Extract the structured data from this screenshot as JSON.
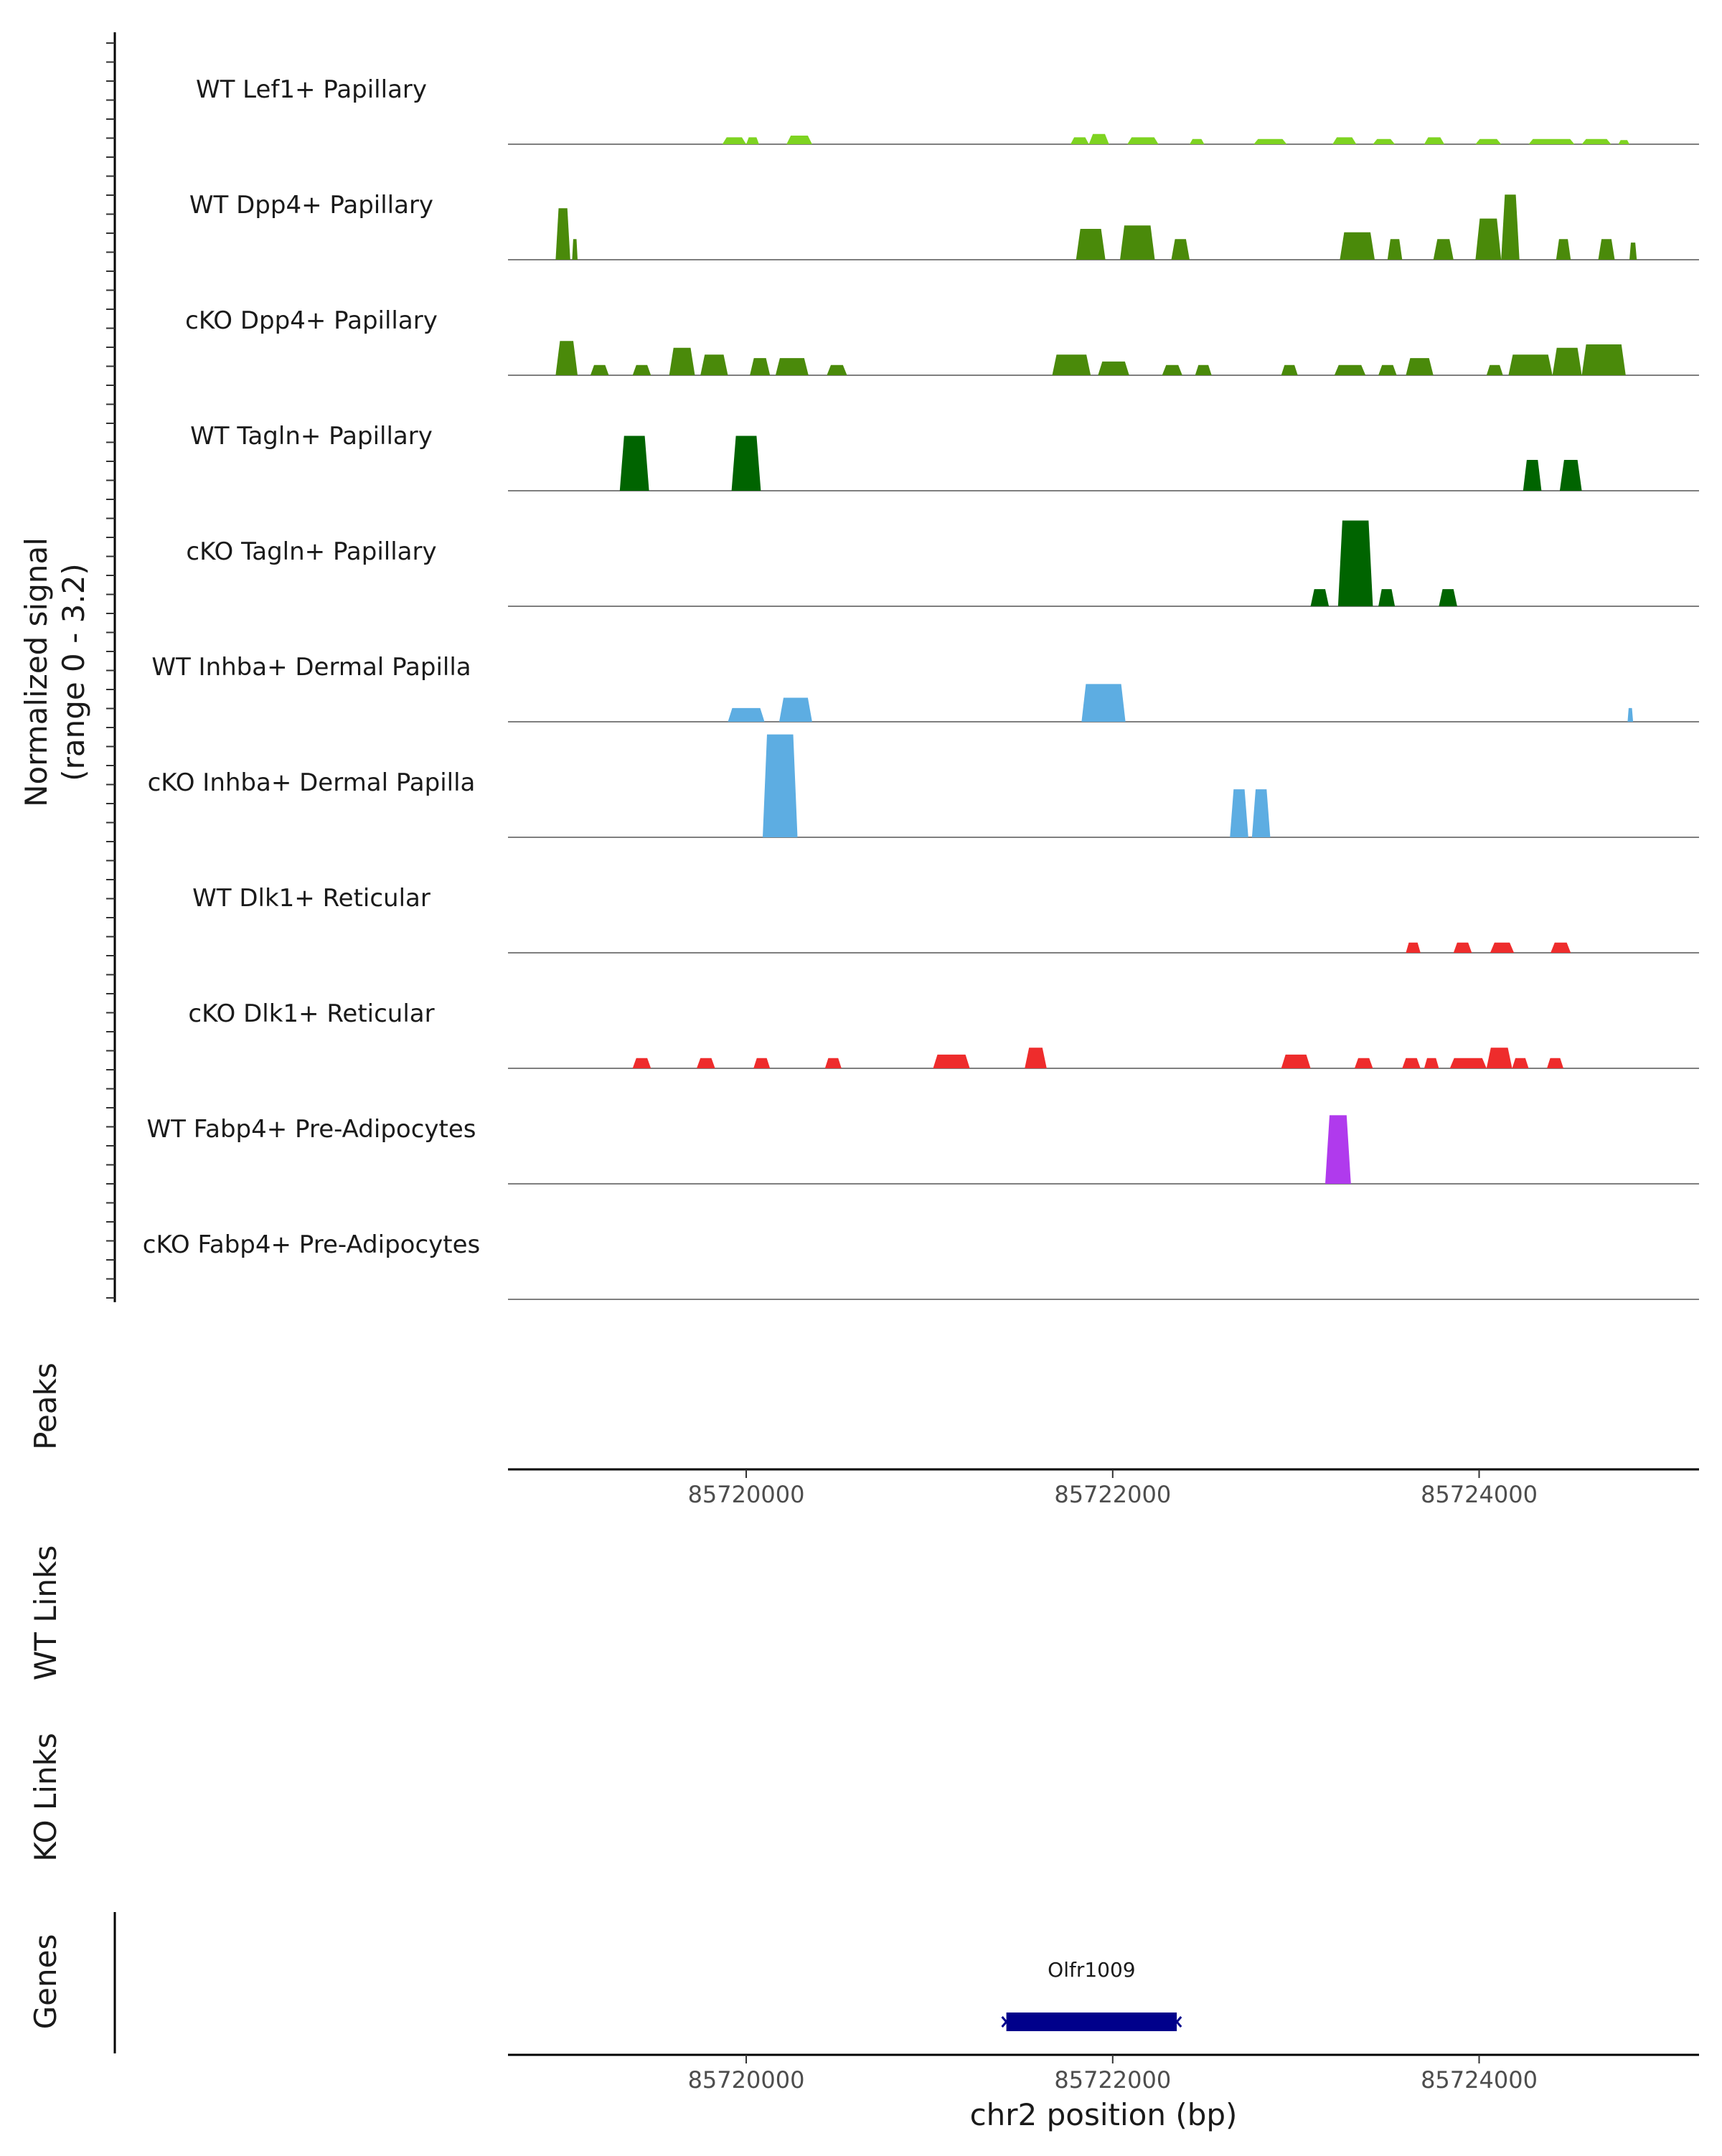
{
  "chart_data": {
    "type": "area",
    "title": "",
    "region": {
      "chromosome": "chr2",
      "start": 85718700,
      "end": 85725200
    },
    "ylabel": [
      "Normalized signal",
      "(range 0 - 3.2)"
    ],
    "ylim": [
      0,
      3.2
    ],
    "xlabel": "chr2 position (bp)",
    "xticks": [
      85720000,
      85722000,
      85724000
    ],
    "xtick_labels": [
      "85720000",
      "85722000",
      "85724000"
    ],
    "tracks": [
      {
        "label": "WT Lef1+ Papillary",
        "color": "#7ed321",
        "peaks": [
          [
            85719870,
            85720000,
            0.2
          ],
          [
            85720000,
            85720070,
            0.2
          ],
          [
            85720220,
            85720360,
            0.25
          ],
          [
            85721770,
            85721870,
            0.2
          ],
          [
            85721870,
            85721980,
            0.3
          ],
          [
            85722080,
            85722250,
            0.2
          ],
          [
            85722420,
            85722500,
            0.15
          ],
          [
            85722770,
            85722950,
            0.15
          ],
          [
            85723200,
            85723330,
            0.2
          ],
          [
            85723420,
            85723540,
            0.15
          ],
          [
            85723700,
            85723810,
            0.2
          ],
          [
            85723980,
            85724120,
            0.15
          ],
          [
            85724270,
            85724520,
            0.15
          ],
          [
            85724560,
            85724720,
            0.15
          ],
          [
            85724760,
            85724820,
            0.12
          ]
        ]
      },
      {
        "label": "WT Dpp4+ Papillary",
        "color": "#4a8a0a",
        "peaks": [
          [
            85718960,
            85719040,
            1.5
          ],
          [
            85719050,
            85719080,
            0.6
          ],
          [
            85721800,
            85721960,
            0.9
          ],
          [
            85722040,
            85722230,
            1.0
          ],
          [
            85722320,
            85722420,
            0.6
          ],
          [
            85723240,
            85723430,
            0.8
          ],
          [
            85723500,
            85723580,
            0.6
          ],
          [
            85723750,
            85723860,
            0.6
          ],
          [
            85723980,
            85724120,
            1.2
          ],
          [
            85724120,
            85724220,
            1.9
          ],
          [
            85724420,
            85724500,
            0.6
          ],
          [
            85724650,
            85724740,
            0.6
          ],
          [
            85724820,
            85724860,
            0.5
          ]
        ]
      },
      {
        "label": "cKO Dpp4+ Papillary",
        "color": "#4a8a0a",
        "peaks": [
          [
            85718960,
            85719080,
            1.0
          ],
          [
            85719150,
            85719250,
            0.3
          ],
          [
            85719380,
            85719480,
            0.3
          ],
          [
            85719580,
            85719720,
            0.8
          ],
          [
            85719750,
            85719900,
            0.6
          ],
          [
            85720020,
            85720130,
            0.5
          ],
          [
            85720160,
            85720340,
            0.5
          ],
          [
            85720440,
            85720550,
            0.3
          ],
          [
            85721670,
            85721880,
            0.6
          ],
          [
            85721920,
            85722090,
            0.4
          ],
          [
            85722270,
            85722380,
            0.3
          ],
          [
            85722450,
            85722540,
            0.3
          ],
          [
            85722920,
            85723010,
            0.3
          ],
          [
            85723210,
            85723380,
            0.3
          ],
          [
            85723450,
            85723550,
            0.3
          ],
          [
            85723600,
            85723750,
            0.5
          ],
          [
            85724040,
            85724130,
            0.3
          ],
          [
            85724160,
            85724400,
            0.6
          ],
          [
            85724400,
            85724560,
            0.8
          ],
          [
            85724560,
            85724800,
            0.9
          ]
        ]
      },
      {
        "label": "WT Tagln+ Papillary",
        "color": "#006400",
        "peaks": [
          [
            85719310,
            85719470,
            1.6
          ],
          [
            85719920,
            85720080,
            1.6
          ],
          [
            85724240,
            85724340,
            0.9
          ],
          [
            85724440,
            85724560,
            0.9
          ]
        ]
      },
      {
        "label": "cKO Tagln+ Papillary",
        "color": "#006400",
        "peaks": [
          [
            85723080,
            85723180,
            0.5
          ],
          [
            85723230,
            85723420,
            2.5
          ],
          [
            85723450,
            85723540,
            0.5
          ],
          [
            85723780,
            85723880,
            0.5
          ]
        ]
      },
      {
        "label": "WT Inhba+ Dermal Papilla",
        "color": "#5dade2",
        "peaks": [
          [
            85719900,
            85720100,
            0.4
          ],
          [
            85720180,
            85720360,
            0.7
          ],
          [
            85721830,
            85722070,
            1.1
          ],
          [
            85724810,
            85724840,
            0.4
          ]
        ]
      },
      {
        "label": "cKO Inhba+ Dermal Papilla",
        "color": "#5dade2",
        "peaks": [
          [
            85720090,
            85720280,
            3.0
          ],
          [
            85722640,
            85722740,
            1.4
          ],
          [
            85722760,
            85722860,
            1.4
          ]
        ]
      },
      {
        "label": "WT Dlk1+ Reticular",
        "color": "#ee2c2c",
        "peaks": [
          [
            85723600,
            85723680,
            0.3
          ],
          [
            85723860,
            85723960,
            0.3
          ],
          [
            85724060,
            85724190,
            0.3
          ],
          [
            85724390,
            85724500,
            0.3
          ]
        ]
      },
      {
        "label": "cKO Dlk1+ Reticular",
        "color": "#ee2c2c",
        "peaks": [
          [
            85719380,
            85719480,
            0.3
          ],
          [
            85719730,
            85719830,
            0.3
          ],
          [
            85720040,
            85720130,
            0.3
          ],
          [
            85720430,
            85720520,
            0.3
          ],
          [
            85721020,
            85721220,
            0.4
          ],
          [
            85721520,
            85721640,
            0.6
          ],
          [
            85722920,
            85723080,
            0.4
          ],
          [
            85723320,
            85723420,
            0.3
          ],
          [
            85723580,
            85723680,
            0.3
          ],
          [
            85723700,
            85723780,
            0.3
          ],
          [
            85723840,
            85724040,
            0.3
          ],
          [
            85724040,
            85724180,
            0.6
          ],
          [
            85724180,
            85724270,
            0.3
          ],
          [
            85724370,
            85724460,
            0.3
          ]
        ]
      },
      {
        "label": "WT Fabp4+ Pre-Adipocytes",
        "color": "#b03aed",
        "peaks": [
          [
            85723160,
            85723300,
            2.0
          ]
        ]
      },
      {
        "label": "cKO Fabp4+ Pre-Adipocytes",
        "color": "#b03aed",
        "peaks": []
      }
    ],
    "peaks_track": {
      "label": "Peaks",
      "values": []
    },
    "links_tracks": [
      {
        "label": "WT Links",
        "values": []
      },
      {
        "label": "KO Links",
        "values": []
      }
    ],
    "genes_track": {
      "label": "Genes",
      "genes": [
        {
          "name": "Olfr1009",
          "start": 85721420,
          "end": 85722350,
          "color": "#00008b"
        }
      ]
    }
  }
}
